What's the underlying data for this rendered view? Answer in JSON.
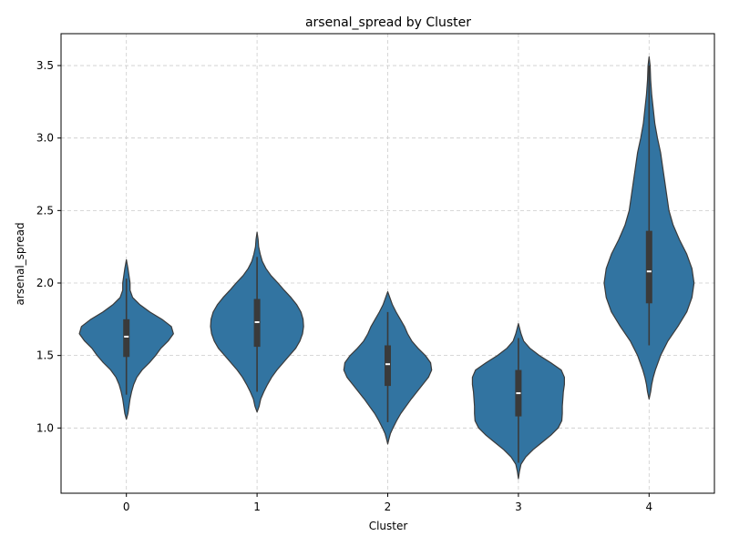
{
  "chart_data": {
    "type": "violin",
    "title": "arsenal_spread by Cluster",
    "xlabel": "Cluster",
    "ylabel": "arsenal_spread",
    "categories": [
      "0",
      "1",
      "2",
      "3",
      "4"
    ],
    "ylim": [
      0.55,
      3.72
    ],
    "yticks": [
      1.0,
      1.5,
      2.0,
      2.5,
      3.0,
      3.5
    ],
    "ytick_labels": [
      "1.0",
      "1.5",
      "2.0",
      "2.5",
      "3.0",
      "3.5"
    ],
    "grid": true,
    "fill_color": "#3274a1",
    "edge_color": "#3a3a3a",
    "box_color": "#3a3a3a",
    "median_color": "#ffffff",
    "grid_color": "#cccccc",
    "violins": [
      {
        "category": "0",
        "median": 1.63,
        "q1": 1.49,
        "q3": 1.75,
        "whisker_low": 1.23,
        "whisker_high": 2.03,
        "density": [
          [
            1.06,
            0.0
          ],
          [
            1.1,
            0.03
          ],
          [
            1.15,
            0.05
          ],
          [
            1.2,
            0.07
          ],
          [
            1.25,
            0.1
          ],
          [
            1.3,
            0.14
          ],
          [
            1.35,
            0.2
          ],
          [
            1.4,
            0.3
          ],
          [
            1.45,
            0.44
          ],
          [
            1.5,
            0.56
          ],
          [
            1.55,
            0.66
          ],
          [
            1.6,
            0.8
          ],
          [
            1.65,
            0.9
          ],
          [
            1.7,
            0.86
          ],
          [
            1.75,
            0.68
          ],
          [
            1.8,
            0.45
          ],
          [
            1.85,
            0.26
          ],
          [
            1.9,
            0.12
          ],
          [
            1.95,
            0.07
          ],
          [
            2.0,
            0.07
          ],
          [
            2.05,
            0.05
          ],
          [
            2.1,
            0.03
          ],
          [
            2.16,
            0.0
          ]
        ]
      },
      {
        "category": "1",
        "median": 1.73,
        "q1": 1.56,
        "q3": 1.89,
        "whisker_low": 1.25,
        "whisker_high": 2.18,
        "density": [
          [
            1.11,
            0.0
          ],
          [
            1.15,
            0.04
          ],
          [
            1.2,
            0.07
          ],
          [
            1.25,
            0.13
          ],
          [
            1.3,
            0.2
          ],
          [
            1.35,
            0.28
          ],
          [
            1.4,
            0.38
          ],
          [
            1.45,
            0.5
          ],
          [
            1.5,
            0.62
          ],
          [
            1.55,
            0.74
          ],
          [
            1.6,
            0.82
          ],
          [
            1.65,
            0.87
          ],
          [
            1.7,
            0.89
          ],
          [
            1.75,
            0.88
          ],
          [
            1.8,
            0.84
          ],
          [
            1.85,
            0.76
          ],
          [
            1.9,
            0.65
          ],
          [
            1.95,
            0.52
          ],
          [
            2.0,
            0.4
          ],
          [
            2.05,
            0.27
          ],
          [
            2.1,
            0.17
          ],
          [
            2.15,
            0.1
          ],
          [
            2.2,
            0.06
          ],
          [
            2.25,
            0.03
          ],
          [
            2.3,
            0.02
          ],
          [
            2.35,
            0.0
          ]
        ]
      },
      {
        "category": "2",
        "median": 1.44,
        "q1": 1.29,
        "q3": 1.57,
        "whisker_low": 1.04,
        "whisker_high": 1.8,
        "density": [
          [
            0.89,
            0.0
          ],
          [
            0.92,
            0.02
          ],
          [
            0.96,
            0.05
          ],
          [
            1.0,
            0.1
          ],
          [
            1.05,
            0.17
          ],
          [
            1.1,
            0.25
          ],
          [
            1.15,
            0.35
          ],
          [
            1.2,
            0.45
          ],
          [
            1.25,
            0.56
          ],
          [
            1.3,
            0.67
          ],
          [
            1.35,
            0.78
          ],
          [
            1.4,
            0.84
          ],
          [
            1.45,
            0.82
          ],
          [
            1.5,
            0.72
          ],
          [
            1.55,
            0.58
          ],
          [
            1.6,
            0.46
          ],
          [
            1.65,
            0.38
          ],
          [
            1.7,
            0.32
          ],
          [
            1.75,
            0.24
          ],
          [
            1.8,
            0.16
          ],
          [
            1.85,
            0.09
          ],
          [
            1.9,
            0.04
          ],
          [
            1.94,
            0.0
          ]
        ]
      },
      {
        "category": "3",
        "median": 1.24,
        "q1": 1.08,
        "q3": 1.4,
        "whisker_low": 0.76,
        "whisker_high": 1.62,
        "density": [
          [
            0.65,
            0.0
          ],
          [
            0.7,
            0.02
          ],
          [
            0.75,
            0.05
          ],
          [
            0.8,
            0.14
          ],
          [
            0.85,
            0.28
          ],
          [
            0.9,
            0.45
          ],
          [
            0.95,
            0.62
          ],
          [
            1.0,
            0.76
          ],
          [
            1.05,
            0.83
          ],
          [
            1.1,
            0.84
          ],
          [
            1.15,
            0.84
          ],
          [
            1.2,
            0.85
          ],
          [
            1.25,
            0.86
          ],
          [
            1.3,
            0.88
          ],
          [
            1.35,
            0.88
          ],
          [
            1.4,
            0.82
          ],
          [
            1.45,
            0.62
          ],
          [
            1.5,
            0.4
          ],
          [
            1.55,
            0.22
          ],
          [
            1.6,
            0.1
          ],
          [
            1.65,
            0.05
          ],
          [
            1.72,
            0.0
          ]
        ]
      },
      {
        "category": "4",
        "median": 2.08,
        "q1": 1.86,
        "q3": 2.36,
        "whisker_low": 1.57,
        "whisker_high": 3.5,
        "density": [
          [
            1.2,
            0.0
          ],
          [
            1.25,
            0.03
          ],
          [
            1.3,
            0.05
          ],
          [
            1.35,
            0.08
          ],
          [
            1.4,
            0.12
          ],
          [
            1.5,
            0.22
          ],
          [
            1.6,
            0.36
          ],
          [
            1.7,
            0.55
          ],
          [
            1.8,
            0.72
          ],
          [
            1.9,
            0.82
          ],
          [
            2.0,
            0.86
          ],
          [
            2.1,
            0.82
          ],
          [
            2.2,
            0.72
          ],
          [
            2.3,
            0.58
          ],
          [
            2.4,
            0.46
          ],
          [
            2.5,
            0.38
          ],
          [
            2.6,
            0.34
          ],
          [
            2.7,
            0.3
          ],
          [
            2.8,
            0.26
          ],
          [
            2.9,
            0.22
          ],
          [
            3.0,
            0.16
          ],
          [
            3.1,
            0.11
          ],
          [
            3.2,
            0.08
          ],
          [
            3.3,
            0.05
          ],
          [
            3.4,
            0.03
          ],
          [
            3.5,
            0.02
          ],
          [
            3.56,
            0.0
          ]
        ]
      }
    ]
  }
}
